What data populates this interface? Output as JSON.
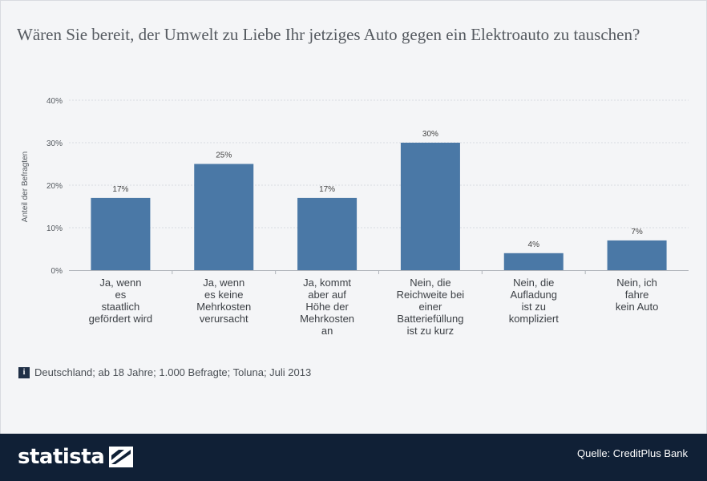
{
  "title": "Wären Sie bereit, der Umwelt zu Liebe Ihr jetziges Auto gegen ein Elektroauto zu tauschen?",
  "info_icon": "i",
  "info_text": "Deutschland; ab 18 Jahre; 1.000 Befragte; Toluna; Juli 2013",
  "footer": {
    "logo_text": "statista",
    "logo_icon": "statista-logo-icon",
    "source": "Quelle: CreditPlus Bank"
  },
  "colors": {
    "bar": "#4a78a6",
    "footer": "#102036",
    "grid": "#d8dbe0"
  },
  "chart_data": {
    "type": "bar",
    "categories": [
      [
        "Ja, wenn",
        "es",
        "staatlich",
        "gefördert wird"
      ],
      [
        "Ja, wenn",
        "es keine",
        "Mehrkosten",
        "verursacht"
      ],
      [
        "Ja, kommt",
        "aber auf",
        "Höhe der",
        "Mehrkosten",
        "an"
      ],
      [
        "Nein, die",
        "Reichweite bei",
        "einer",
        "Batteriefüllung",
        "ist zu kurz"
      ],
      [
        "Nein, die",
        "Aufladung",
        "ist zu",
        "kompliziert"
      ],
      [
        "Nein, ich",
        "fahre",
        "kein Auto"
      ]
    ],
    "values": [
      17,
      25,
      17,
      30,
      4,
      7
    ],
    "data_labels": [
      "17%",
      "25%",
      "17%",
      "30%",
      "4%",
      "7%"
    ],
    "ylabel": "Anteil der Befragten",
    "ylim": [
      0,
      40
    ],
    "yticks": [
      0,
      10,
      20,
      30,
      40
    ],
    "ytick_labels": [
      "0%",
      "10%",
      "20%",
      "30%",
      "40%"
    ],
    "grid": true,
    "legend": "none"
  }
}
